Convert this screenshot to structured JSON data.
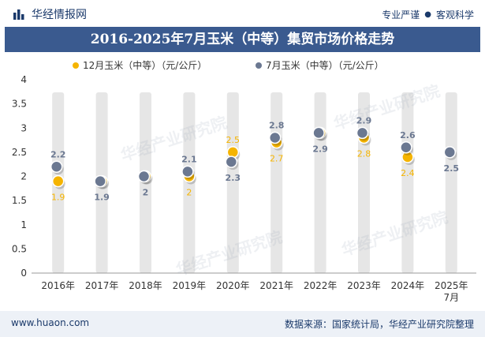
{
  "header": {
    "brand_name": "华经情报网",
    "tagline_left": "专业严谨",
    "tagline_right": "客观科学"
  },
  "watermark": "华经产业研究院",
  "footer": {
    "website": "www.huaon.com",
    "source": "数据来源：国家统计局，华经产业研究院整理"
  },
  "colors": {
    "series_a": "#f5b400",
    "series_b": "#6b7891",
    "title_bg": "#3a5a8f",
    "column_bg": "#e6e6e6"
  },
  "icons": {
    "brand": "bar-chart-logo-icon"
  },
  "chart_data": {
    "type": "scatter",
    "title": "2016-2025年7月玉米（中等）集贸市场价格走势",
    "categories": [
      "2016年",
      "2017年",
      "2018年",
      "2019年",
      "2020年",
      "2021年",
      "2022年",
      "2023年",
      "2024年",
      "2025年7月"
    ],
    "category_lines": [
      [
        "2016年"
      ],
      [
        "2017年"
      ],
      [
        "2018年"
      ],
      [
        "2019年"
      ],
      [
        "2020年"
      ],
      [
        "2021年"
      ],
      [
        "2022年"
      ],
      [
        "2023年"
      ],
      [
        "2024年"
      ],
      [
        "2025年",
        "7月"
      ]
    ],
    "series": [
      {
        "name": "12月玉米（中等）（元/公斤）",
        "values": [
          1.9,
          1.9,
          2.0,
          2.0,
          2.5,
          2.7,
          2.9,
          2.8,
          2.4,
          null
        ],
        "labels": [
          "1.9",
          "1.9",
          "2",
          "2",
          "2.5",
          "2.7",
          "2.9",
          "2.8",
          "2.4",
          ""
        ]
      },
      {
        "name": "7月玉米（中等）（元/公斤）",
        "values": [
          2.2,
          1.9,
          2.0,
          2.1,
          2.3,
          2.8,
          2.9,
          2.9,
          2.6,
          2.5
        ],
        "labels": [
          "2.2",
          "1.9",
          "2",
          "2.1",
          "2.3",
          "2.8",
          "2.9",
          "2.9",
          "2.6",
          "2.5"
        ]
      }
    ],
    "ylim": [
      0,
      4
    ],
    "yticks": [
      "0",
      "0.5",
      "1",
      "1.5",
      "2",
      "2.5",
      "3",
      "3.5",
      "4"
    ],
    "ytick_values": [
      0,
      0.5,
      1,
      1.5,
      2,
      2.5,
      3,
      3.5,
      4
    ],
    "legend_position": "top-center",
    "grid": false
  }
}
